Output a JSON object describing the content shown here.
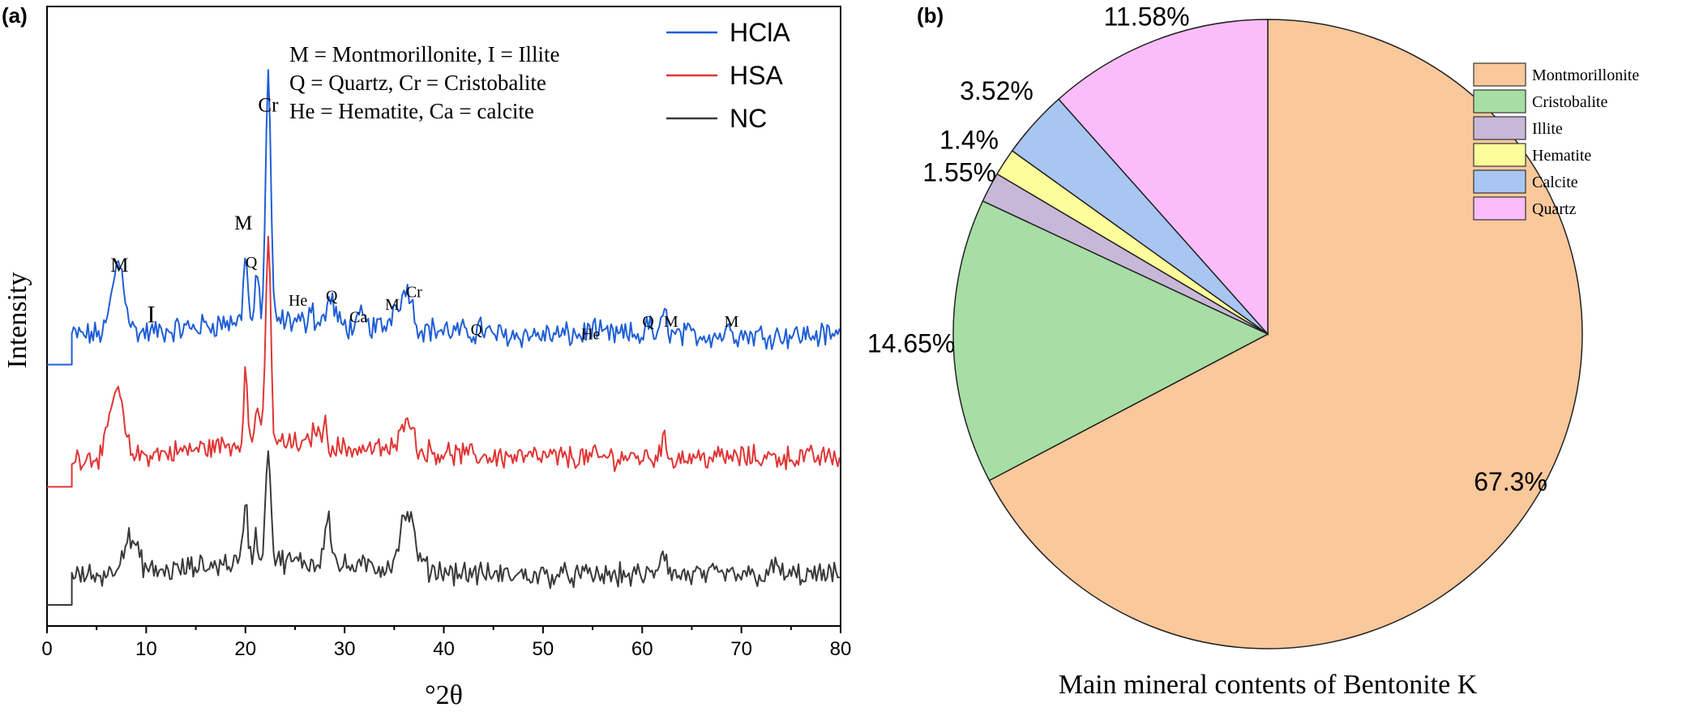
{
  "panel_a_label": "(a)",
  "panel_b_label": "(b)",
  "chart_data": [
    {
      "type": "line",
      "panel": "(a)",
      "xlabel": "°2θ",
      "ylabel": "Intensity",
      "xlim": [
        0,
        80
      ],
      "xticks": [
        "0",
        "10",
        "20",
        "30",
        "40",
        "50",
        "60",
        "70",
        "80"
      ],
      "key_lines": [
        "M = Montmorillonite, I = Illite",
        "Q = Quartz, Cr = Cristobalite",
        "He = Hematite, Ca = calcite"
      ],
      "series": [
        {
          "name": "HClA",
          "color": "#1f5fd6",
          "offset": 0.62,
          "noise": 0.03,
          "start": 2.5,
          "step": 0.18,
          "peaks": [
            [
              7.2,
              0.17,
              0.9
            ],
            [
              20.0,
              0.17,
              0.28
            ],
            [
              21.2,
              0.1,
              0.3
            ],
            [
              22.3,
              0.6,
              0.35
            ],
            [
              26.6,
              0.05,
              0.3
            ],
            [
              28.6,
              0.06,
              0.6
            ],
            [
              31.8,
              0.03,
              0.3
            ],
            [
              35.3,
              0.06,
              0.7
            ],
            [
              36.4,
              0.09,
              0.6
            ],
            [
              43.7,
              0.02,
              0.4
            ],
            [
              54.9,
              0.02,
              0.5
            ],
            [
              60.6,
              0.03,
              0.3
            ],
            [
              62.3,
              0.05,
              0.4
            ],
            [
              68.9,
              0.03,
              0.3
            ]
          ]
        },
        {
          "name": "HSA",
          "color": "#e03535",
          "offset": 0.33,
          "noise": 0.028,
          "start": 2.5,
          "step": 0.18,
          "peaks": [
            [
              7.0,
              0.16,
              0.9
            ],
            [
              20.0,
              0.17,
              0.28
            ],
            [
              21.2,
              0.1,
              0.3
            ],
            [
              22.3,
              0.49,
              0.35
            ],
            [
              27.0,
              0.05,
              0.4
            ],
            [
              28.0,
              0.05,
              0.4
            ],
            [
              36.3,
              0.09,
              0.7
            ],
            [
              62.1,
              0.04,
              0.4
            ]
          ]
        },
        {
          "name": "NC",
          "color": "#3a3a3a",
          "offset": 0.05,
          "noise": 0.028,
          "start": 2.5,
          "step": 0.18,
          "peaks": [
            [
              8.3,
              0.08,
              1.2
            ],
            [
              20.0,
              0.15,
              0.3
            ],
            [
              21.0,
              0.06,
              0.3
            ],
            [
              22.3,
              0.28,
              0.35
            ],
            [
              28.3,
              0.12,
              0.5
            ],
            [
              36.3,
              0.13,
              1.0
            ],
            [
              62.1,
              0.06,
              0.5
            ],
            [
              73.5,
              0.02,
              0.6
            ]
          ]
        }
      ],
      "annotations": [
        {
          "text": "M",
          "x": 7.3,
          "y": 0.84,
          "size": "sm"
        },
        {
          "text": "I",
          "x": 10.5,
          "y": 0.72,
          "size": "lg"
        },
        {
          "text": "M",
          "x": 19.8,
          "y": 0.94,
          "size": "sm"
        },
        {
          "text": "Q",
          "x": 20.6,
          "y": 0.85,
          "size": "xs"
        },
        {
          "text": "Cr",
          "x": 22.3,
          "y": 1.22,
          "size": "sm"
        },
        {
          "text": "He",
          "x": 25.3,
          "y": 0.76,
          "size": "xs"
        },
        {
          "text": "Q",
          "x": 28.7,
          "y": 0.77,
          "size": "xs"
        },
        {
          "text": "Ca",
          "x": 31.4,
          "y": 0.72,
          "size": "xs"
        },
        {
          "text": "M",
          "x": 34.8,
          "y": 0.75,
          "size": "xs"
        },
        {
          "text": "Cr",
          "x": 37.0,
          "y": 0.78,
          "size": "xs"
        },
        {
          "text": "Q",
          "x": 43.3,
          "y": 0.69,
          "size": "xs"
        },
        {
          "text": "He",
          "x": 54.8,
          "y": 0.68,
          "size": "xs"
        },
        {
          "text": "Q",
          "x": 60.6,
          "y": 0.71,
          "size": "xs"
        },
        {
          "text": "M",
          "x": 62.9,
          "y": 0.71,
          "size": "xs"
        },
        {
          "text": "M",
          "x": 69.0,
          "y": 0.71,
          "size": "xs"
        }
      ]
    },
    {
      "type": "pie",
      "panel": "(b)",
      "title": "Main mineral contents of Bentonite K",
      "start_angle_deg": 0,
      "slices": [
        {
          "label": "Montmorillonite",
          "value": 67.3,
          "display": "67.3%",
          "color": "#f9c89b",
          "legend": true
        },
        {
          "label": "Cristobalite",
          "value": 14.65,
          "display": "14.65%",
          "color": "#a7dea5",
          "legend": true
        },
        {
          "label": "Illite",
          "value": 1.55,
          "display": "1.55%",
          "color": "#c8b8d8",
          "legend": true
        },
        {
          "label": "Hematite",
          "value": 1.4,
          "display": "1.4%",
          "color": "#fdfd9c",
          "legend": true
        },
        {
          "label": "Calcite",
          "value": 3.52,
          "display": "3.52%",
          "color": "#a9c6f2",
          "legend": true
        },
        {
          "label": "Quartz",
          "value": 11.58,
          "display": "11.58%",
          "color": "#fbbdfa",
          "legend": true
        }
      ]
    }
  ]
}
